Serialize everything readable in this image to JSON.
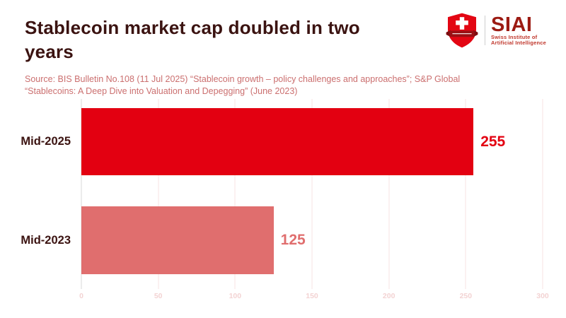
{
  "page": {
    "title": "Stablecoin market cap doubled in two years",
    "source_lines": [
      "Source: BIS Bulletin No.108 (11 Jul 2025) “Stablecoin growth – policy challenges and approaches”; S&P Global",
      "“Stablecoins: A Deep Dive into Valuation and Depegging” (June 2023)"
    ]
  },
  "logo": {
    "acronym": "SIAI",
    "name_line1": "Swiss Institute of",
    "name_line2": "Artificial Intelligence",
    "shield_icon": "swiss-shield-with-white-cross-and-banner"
  },
  "colors": {
    "title_text": "#3b1311",
    "source_text": "#cb6f6f",
    "bar_2025": "#e30011",
    "bar_2023": "#e06e6e",
    "gridline": "#f7e3e3",
    "zero_line": "#d8d8d8",
    "tick_label": "#f3d3d3",
    "logo_dark_red": "#9c1b13",
    "logo_bright_red": "#e30613"
  },
  "chart_data": {
    "type": "bar",
    "orientation": "horizontal",
    "title": "Stablecoin market cap doubled in two years",
    "categories": [
      "Mid-2025",
      "Mid-2023"
    ],
    "values": [
      255,
      125
    ],
    "bar_colors": [
      "#e30011",
      "#e06e6e"
    ],
    "value_label_colors": [
      "#e30011",
      "#e06e6e"
    ],
    "xlabel": "",
    "ylabel": "",
    "xlim": [
      0,
      300
    ],
    "xticks": [
      0,
      50,
      100,
      150,
      200,
      250,
      300
    ],
    "grid": "vertical-gridlines-on",
    "legend": "none",
    "data_labels": true
  }
}
